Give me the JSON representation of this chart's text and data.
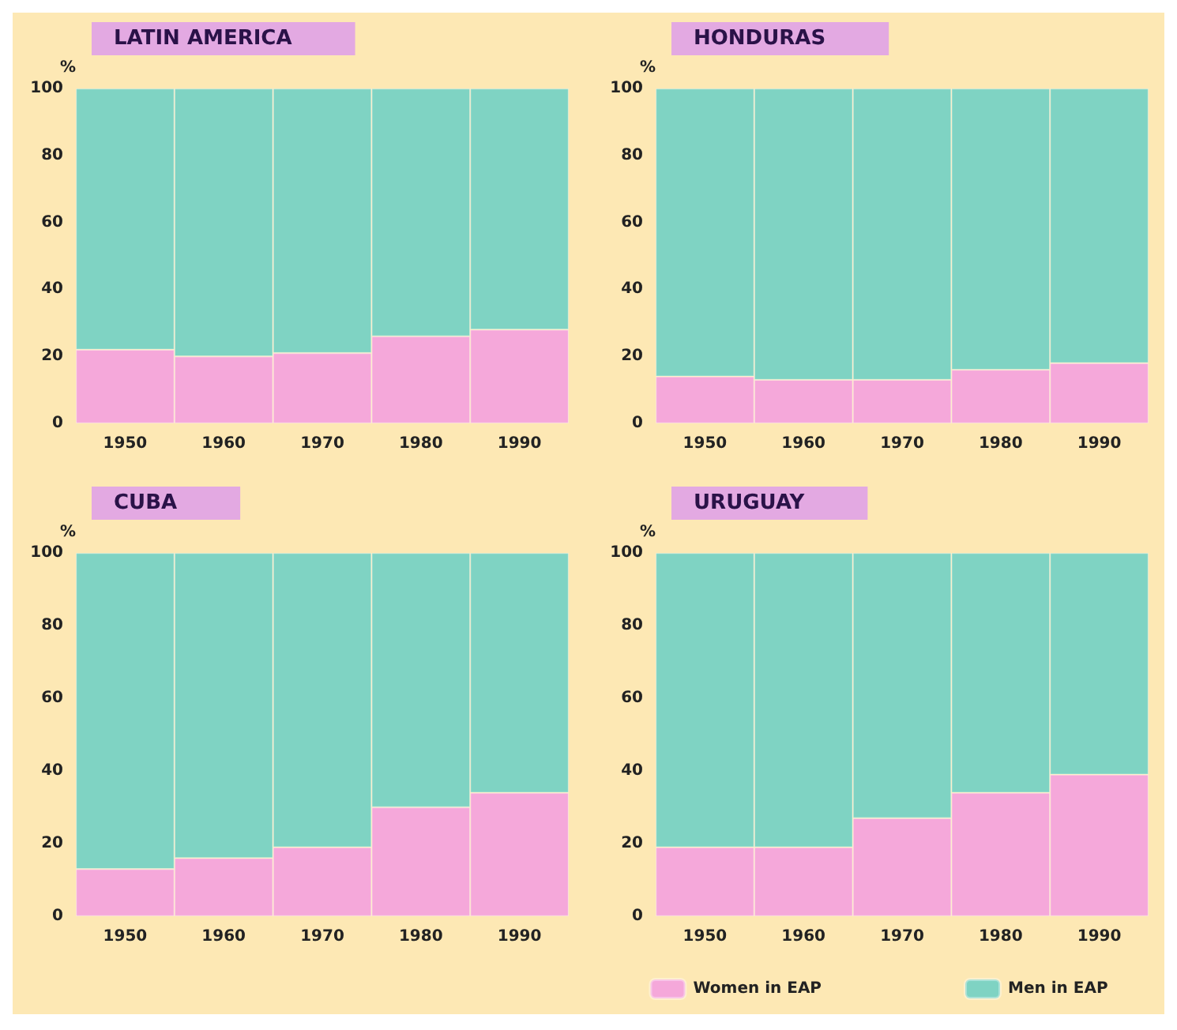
{
  "chart_data": [
    {
      "type": "bar",
      "stacked": true,
      "title": "LATIN AMERICA",
      "ylabel": "%",
      "categories": [
        "1950",
        "1960",
        "1970",
        "1980",
        "1990"
      ],
      "ylim": [
        0,
        100
      ],
      "yticks": [
        0,
        20,
        40,
        60,
        80,
        100
      ],
      "grid": false,
      "legend": false,
      "series": [
        {
          "color": "#f5a8da",
          "values": [
            22,
            20,
            21,
            26,
            28
          ]
        },
        {
          "color": "#7fd3c3",
          "values": [
            78,
            80,
            79,
            74,
            72
          ]
        }
      ]
    },
    {
      "type": "bar",
      "stacked": true,
      "title": "HONDURAS",
      "ylabel": "%",
      "categories": [
        "1950",
        "1960",
        "1970",
        "1980",
        "1990"
      ],
      "ylim": [
        0,
        100
      ],
      "yticks": [
        0,
        20,
        40,
        60,
        80,
        100
      ],
      "grid": false,
      "legend": false,
      "series": [
        {
          "color": "#f5a8da",
          "values": [
            14,
            13,
            13,
            16,
            18
          ]
        },
        {
          "color": "#7fd3c3",
          "values": [
            86,
            87,
            87,
            84,
            82
          ]
        }
      ]
    },
    {
      "type": "bar",
      "stacked": true,
      "title": "CUBA",
      "ylabel": "%",
      "categories": [
        "1950",
        "1960",
        "1970",
        "1980",
        "1990"
      ],
      "ylim": [
        0,
        100
      ],
      "yticks": [
        0,
        20,
        40,
        60,
        80,
        100
      ],
      "grid": false,
      "legend": false,
      "series": [
        {
          "color": "#f5a8da",
          "values": [
            13,
            16,
            19,
            30,
            34
          ]
        },
        {
          "color": "#7fd3c3",
          "values": [
            87,
            84,
            81,
            70,
            66
          ]
        }
      ]
    },
    {
      "type": "bar",
      "stacked": true,
      "title": "URUGUAY",
      "ylabel": "%",
      "categories": [
        "1950",
        "1960",
        "1970",
        "1980",
        "1990"
      ],
      "ylim": [
        0,
        100
      ],
      "yticks": [
        0,
        20,
        40,
        60,
        80,
        100
      ],
      "grid": false,
      "legend": "bottom",
      "series": [
        {
          "name": "Women in EAP",
          "color": "#f5a8da",
          "values": [
            19,
            19,
            27,
            34,
            39
          ]
        },
        {
          "name": "Men in EAP",
          "color": "#7fd3c3",
          "values": [
            81,
            81,
            73,
            66,
            61
          ]
        }
      ]
    }
  ]
}
